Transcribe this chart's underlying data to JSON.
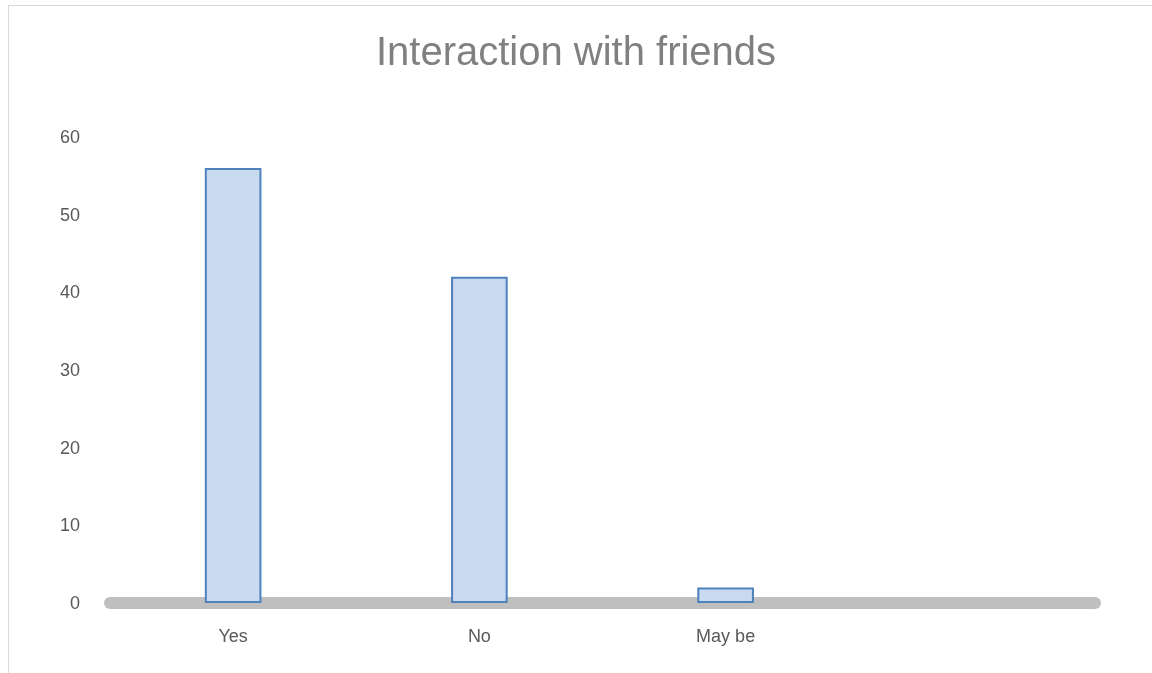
{
  "chart_data": {
    "type": "bar",
    "title": "Interaction with friends",
    "categories": [
      "Yes",
      "No",
      "May be",
      null
    ],
    "values": [
      56,
      42,
      2,
      null
    ],
    "color": "#c9d9f0",
    "ylim": [
      0,
      60
    ],
    "yticks": [
      0,
      10,
      20,
      30,
      40,
      50,
      60
    ]
  }
}
